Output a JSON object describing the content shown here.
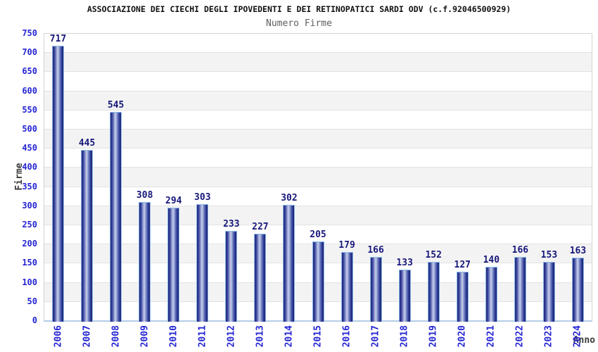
{
  "header": {
    "title": "ASSOCIAZIONE DEI CIECHI DEGLI IPOVEDENTI E DEI RETINOPATICI SARDI ODV (c.f.92046500929)",
    "subtitle": "Numero Firme"
  },
  "chart_data": {
    "type": "bar",
    "title": "ASSOCIAZIONE DEI CIECHI DEGLI IPOVEDENTI E DEI RETINOPATICI SARDI ODV (c.f.92046500929)",
    "subtitle": "Numero Firme",
    "xlabel": "Anno",
    "ylabel": "Firme",
    "categories": [
      "2006",
      "2007",
      "2008",
      "2009",
      "2010",
      "2011",
      "2012",
      "2013",
      "2014",
      "2015",
      "2016",
      "2017",
      "2018",
      "2019",
      "2020",
      "2021",
      "2022",
      "2023",
      "2024"
    ],
    "values": [
      717,
      445,
      545,
      308,
      294,
      303,
      233,
      227,
      302,
      205,
      179,
      166,
      133,
      152,
      127,
      140,
      166,
      153,
      163
    ],
    "ylim": [
      0,
      750
    ],
    "ytick_step": 50,
    "grid": true,
    "legend_position": "none",
    "value_labels_shown": true,
    "colors": {
      "background": "#ffffff",
      "title": "#101010",
      "subtitle": "#5f5f5f",
      "axis_tick_label": "#2424d4",
      "value_label": "#17177c",
      "axis_title": "#3a3a3a",
      "bar_dark": "#22227b",
      "bar_mid": "#5a69b2",
      "bar_highlight": "#c6cdea",
      "bar_border": "#87bae7",
      "band_alt": "#f3f3f3",
      "band_main": "#ffffff",
      "grid_line": "#e2e2e2",
      "plot_border": "#d4d4d4",
      "baseline": "#b5cde6"
    }
  }
}
